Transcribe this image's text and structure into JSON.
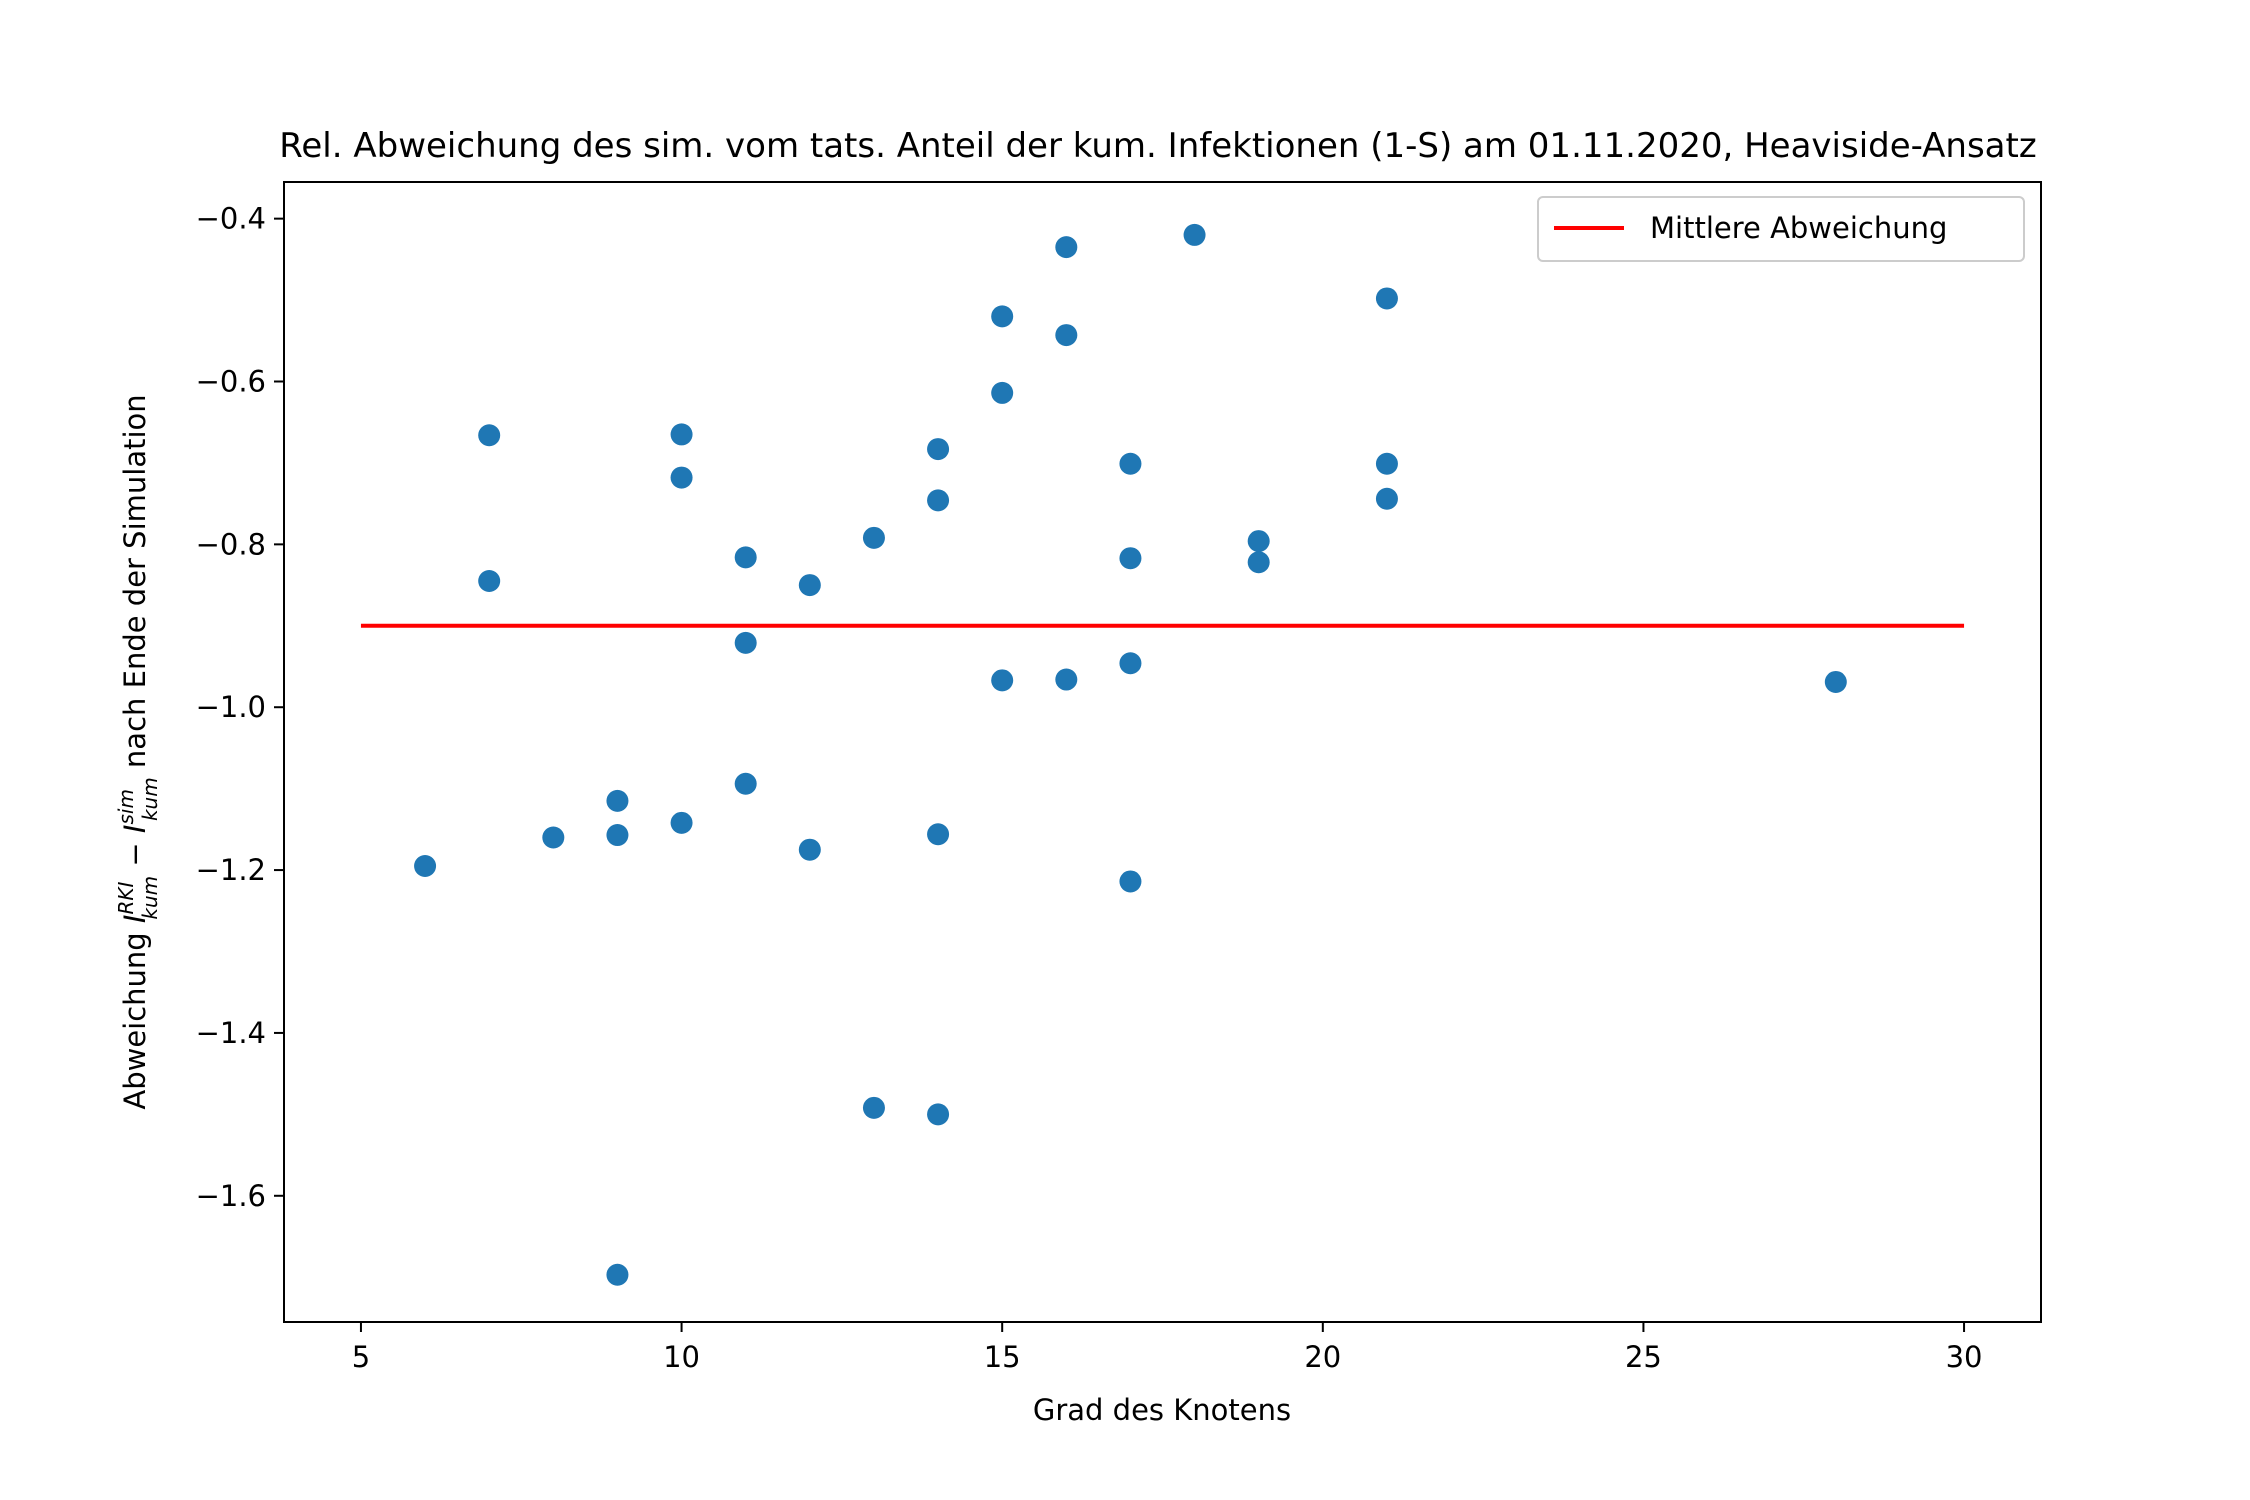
{
  "chart_data": {
    "type": "scatter",
    "title": "Rel. Abweichung des sim. vom tats. Anteil der kum. Infektionen (1-S) am 01.11.2020, Heaviside-Ansatz",
    "xlabel": "Grad des Knotens",
    "ylabel": {
      "prefix": "Abweichung ",
      "term1": {
        "base": "I",
        "sub": "kum",
        "sup": "RKI"
      },
      "operator": " − ",
      "term2": {
        "base": "I",
        "sub": "kum",
        "sup": "sim"
      },
      "suffix": " nach Ende der Simulation"
    },
    "xlim": [
      3.8,
      31.2
    ],
    "ylim": [
      -1.755,
      -0.355
    ],
    "x_ticks": [
      5,
      10,
      15,
      20,
      25,
      30
    ],
    "x_tick_labels": [
      "5",
      "10",
      "15",
      "20",
      "25",
      "30"
    ],
    "y_ticks": [
      -0.4,
      -0.6,
      -0.8,
      -1.0,
      -1.2,
      -1.4,
      -1.6
    ],
    "y_tick_labels": [
      "−0.4",
      "−0.6",
      "−0.8",
      "−1.0",
      "−1.2",
      "−1.4",
      "−1.6"
    ],
    "grid": false,
    "legend_position": "upper-right",
    "marker_color": "#1f77b4",
    "line_color": "#ff0000",
    "points": [
      {
        "x": 6,
        "y": -1.195
      },
      {
        "x": 7,
        "y": -0.666
      },
      {
        "x": 7,
        "y": -0.845
      },
      {
        "x": 8,
        "y": -1.16
      },
      {
        "x": 9,
        "y": -1.115
      },
      {
        "x": 9,
        "y": -1.157
      },
      {
        "x": 9,
        "y": -1.697
      },
      {
        "x": 10,
        "y": -0.665
      },
      {
        "x": 10,
        "y": -0.718
      },
      {
        "x": 10,
        "y": -1.142
      },
      {
        "x": 11,
        "y": -0.816
      },
      {
        "x": 11,
        "y": -0.921
      },
      {
        "x": 11,
        "y": -1.094
      },
      {
        "x": 12,
        "y": -0.85
      },
      {
        "x": 12,
        "y": -1.175
      },
      {
        "x": 13,
        "y": -0.792
      },
      {
        "x": 13,
        "y": -1.492
      },
      {
        "x": 14,
        "y": -0.683
      },
      {
        "x": 14,
        "y": -0.746
      },
      {
        "x": 14,
        "y": -1.156
      },
      {
        "x": 14,
        "y": -1.5
      },
      {
        "x": 15,
        "y": -0.52
      },
      {
        "x": 15,
        "y": -0.614
      },
      {
        "x": 15,
        "y": -0.967
      },
      {
        "x": 16,
        "y": -0.435
      },
      {
        "x": 16,
        "y": -0.543
      },
      {
        "x": 16,
        "y": -0.966
      },
      {
        "x": 17,
        "y": -0.701
      },
      {
        "x": 17,
        "y": -0.817
      },
      {
        "x": 17,
        "y": -0.946
      },
      {
        "x": 17,
        "y": -1.214
      },
      {
        "x": 18,
        "y": -0.42
      },
      {
        "x": 19,
        "y": -0.796
      },
      {
        "x": 19,
        "y": -0.822
      },
      {
        "x": 21,
        "y": -0.498
      },
      {
        "x": 21,
        "y": -0.701
      },
      {
        "x": 21,
        "y": -0.744
      },
      {
        "x": 28,
        "y": -0.969
      }
    ],
    "mean_line": {
      "name": "Mittlere Abweichung",
      "x": [
        5,
        30
      ],
      "y": -0.9
    }
  }
}
